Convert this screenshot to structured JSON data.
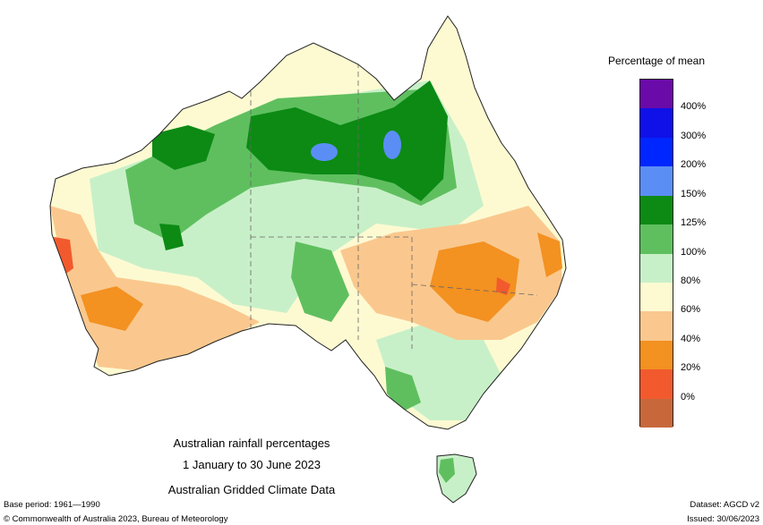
{
  "legend": {
    "title": "Percentage of mean",
    "classes": [
      {
        "color": "#6a0aa8"
      },
      {
        "label": "400%",
        "color": "#1010e8"
      },
      {
        "label": "300%",
        "color": "#0026ff"
      },
      {
        "label": "200%",
        "color": "#5b8ef5"
      },
      {
        "label": "150%",
        "color": "#0c8a14"
      },
      {
        "label": "125%",
        "color": "#5fbf5f"
      },
      {
        "label": "100%",
        "color": "#c8f0c8"
      },
      {
        "label": "80%",
        "color": "#fdfad2"
      },
      {
        "label": "60%",
        "color": "#fac88e"
      },
      {
        "label": "40%",
        "color": "#f39121"
      },
      {
        "label": "20%",
        "color": "#f25a2e"
      },
      {
        "label": "0%",
        "color": "#c8683a"
      }
    ]
  },
  "caption": {
    "line1": "Australian rainfall percentages",
    "line2": "1 January to 30 June 2023",
    "line3": "Australian Gridded Climate Data"
  },
  "footer": {
    "base_period": "Base period: 1961—1990",
    "dataset": "Dataset: AGCD v2",
    "copyright": "© Commonwealth of Australia 2023, Bureau of Meteorology",
    "issued": "Issued: 30/06/2023"
  }
}
